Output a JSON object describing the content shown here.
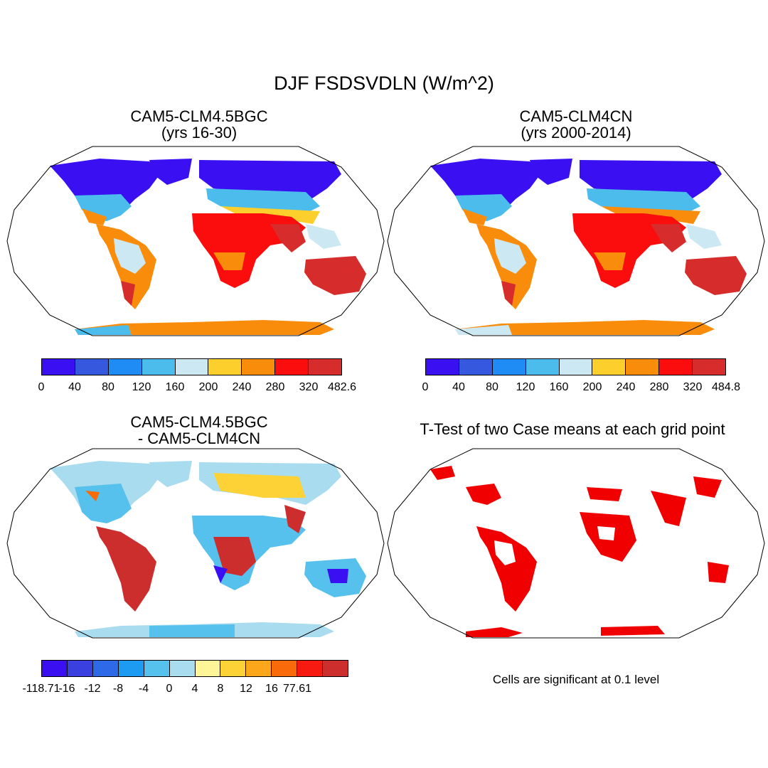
{
  "figure": {
    "title": "DJF FSDSVDLN (W/m^2)",
    "note": "Cells are significant at 0.1 level"
  },
  "panels": [
    {
      "id": "p1",
      "title_line1": "CAM5-CLM4.5BGC",
      "title_line2": "(yrs 16-30)",
      "colors": [
        "#3a10f2",
        "#3658de",
        "#1f8cf5",
        "#4cbcec",
        "#cce9f3",
        "#fdcf2c",
        "#fa8c0c",
        "#fc0d0d",
        "#d72c2c"
      ],
      "tick_labels": [
        "0",
        "40",
        "80",
        "120",
        "160",
        "200",
        "240",
        "280",
        "320",
        "482.6"
      ]
    },
    {
      "id": "p2",
      "title_line1": "CAM5-CLM4CN",
      "title_line2": "(yrs 2000-2014)",
      "colors": [
        "#3a10f2",
        "#3658de",
        "#1f8cf5",
        "#4cbcec",
        "#cce9f3",
        "#fdcf2c",
        "#fa8c0c",
        "#fc0d0d",
        "#d72c2c"
      ],
      "tick_labels": [
        "0",
        "40",
        "80",
        "120",
        "160",
        "200",
        "240",
        "280",
        "320",
        "484.8"
      ]
    },
    {
      "id": "p3",
      "title_line1": "CAM5-CLM4.5BGC",
      "title_line2": "- CAM5-CLM4CN",
      "colors": [
        "#3a10f2",
        "#3a3fe0",
        "#2e6ae8",
        "#1d9bf3",
        "#56c1ec",
        "#a9dcef",
        "#fdf598",
        "#fdd236",
        "#fba61b",
        "#f86a0a",
        "#f61a10",
        "#cc2d2d"
      ],
      "tick_labels": [
        "-118.71",
        "-16",
        "-12",
        "-8",
        "-4",
        "0",
        "4",
        "8",
        "12",
        "16",
        "77.61"
      ]
    },
    {
      "id": "p4",
      "title_line1": "T-Test of two Case means at each grid point",
      "title_line2": ""
    }
  ],
  "palette": {
    "land_red": "#f00000",
    "outline": "#000000",
    "antarctic_orange": "#fa8c0c",
    "antarctic_light": "#cce9f3"
  }
}
